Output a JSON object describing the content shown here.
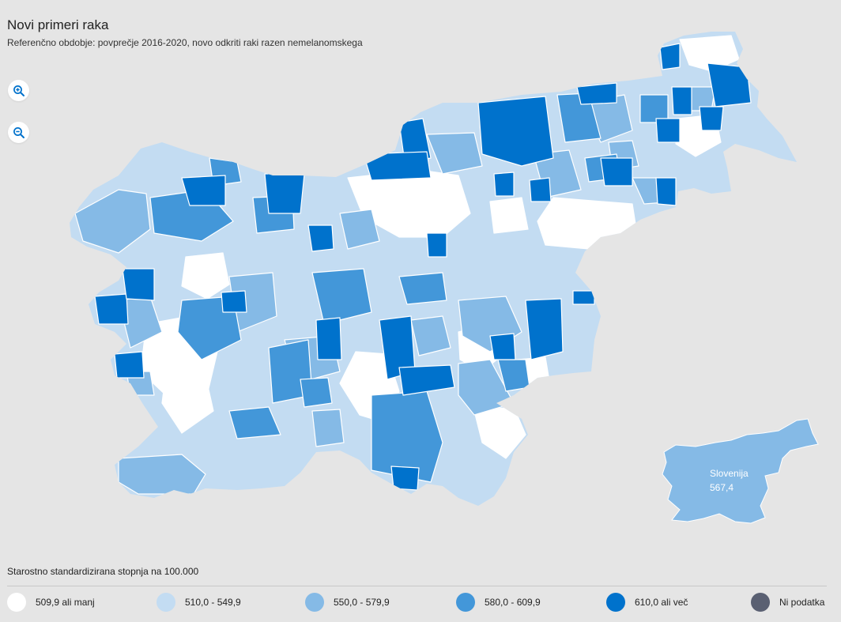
{
  "header": {
    "title": "Novi primeri raka",
    "subtitle": "Referenčno obdobje: povprečje 2016-2020, novo odkriti raki razen nemelanomskega"
  },
  "controls": {
    "zoom_in": "zoom-in-icon",
    "zoom_out": "zoom-out-icon"
  },
  "map": {
    "region": "Slovenia",
    "summary_label": "Slovenija",
    "summary_value": "567,4",
    "summary_color": "#85bae6"
  },
  "legend": {
    "title": "Starostno standardizirana stopnja na 100.000",
    "items": [
      {
        "label": "509,9 ali manj",
        "color": "#ffffff"
      },
      {
        "label": "510,0 - 549,9",
        "color": "#c3dcf2"
      },
      {
        "label": "550,0 - 579,9",
        "color": "#85bae6"
      },
      {
        "label": "580,0 - 609,9",
        "color": "#4397d9"
      },
      {
        "label": "610,0 ali več",
        "color": "#0072cc"
      },
      {
        "label": "Ni podatka",
        "color": "#5a6072"
      }
    ]
  }
}
